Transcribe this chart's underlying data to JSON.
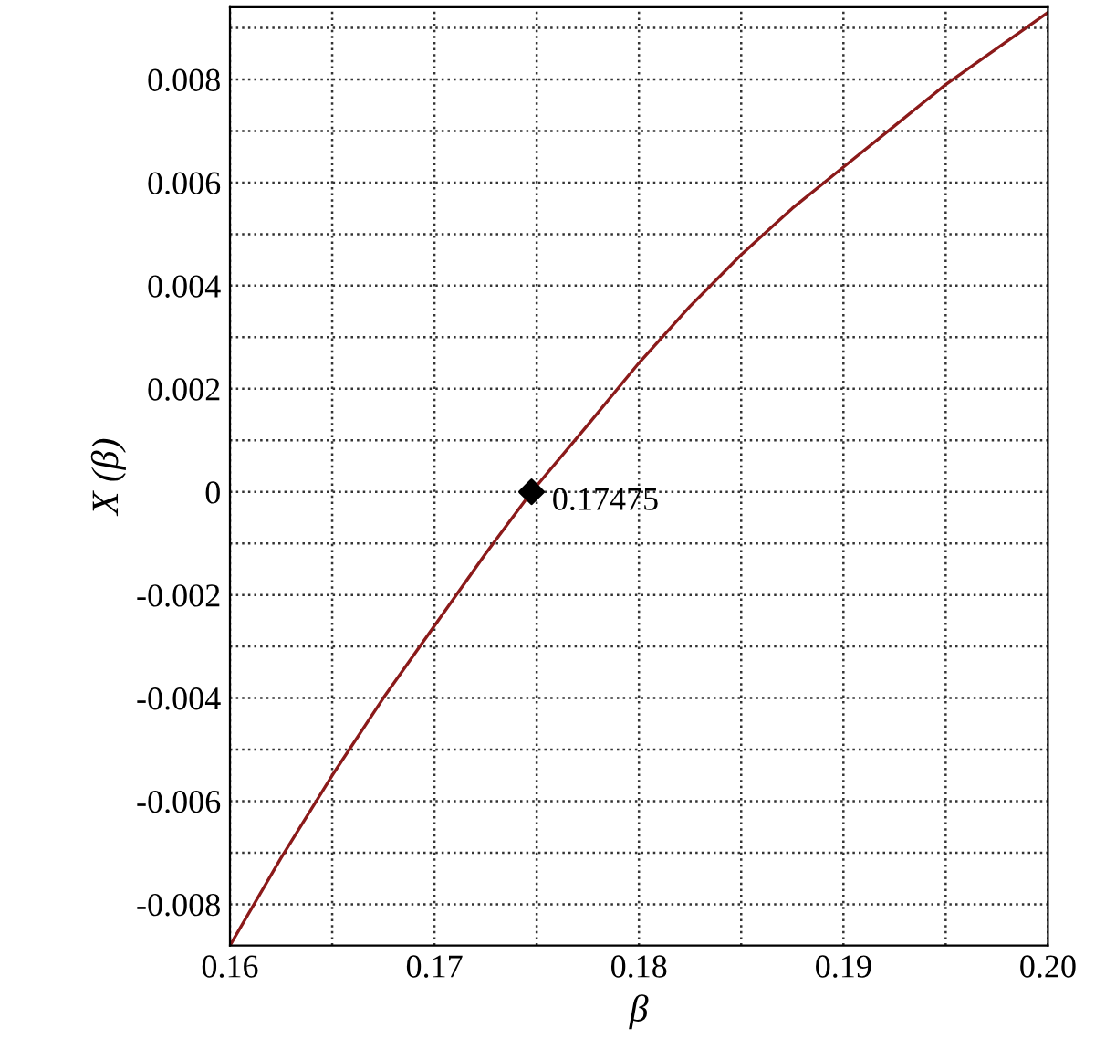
{
  "chart_data": {
    "type": "line",
    "xlabel": "β",
    "ylabel": "X (β)",
    "xlim": [
      0.16,
      0.2
    ],
    "ylim": [
      -0.0088,
      0.0094
    ],
    "xticks": [
      0.16,
      {
        "value": 0.165,
        "label": null
      },
      0.17,
      {
        "value": 0.175,
        "label": null
      },
      0.18,
      {
        "value": 0.185,
        "label": null
      },
      0.19,
      {
        "value": 0.195,
        "label": null
      },
      {
        "value": 0.2,
        "label": "0.20"
      }
    ],
    "yticks": [
      -0.008,
      {
        "value": -0.007,
        "label": null
      },
      -0.006,
      {
        "value": -0.005,
        "label": null
      },
      -0.004,
      {
        "value": -0.003,
        "label": null
      },
      -0.002,
      {
        "value": -0.001,
        "label": null
      },
      0,
      {
        "value": 0.001,
        "label": null
      },
      0.002,
      {
        "value": 0.003,
        "label": null
      },
      0.004,
      {
        "value": 0.005,
        "label": null
      },
      0.006,
      {
        "value": 0.007,
        "label": null
      },
      0.008,
      {
        "value": 0.009,
        "label": null
      }
    ],
    "grid": true,
    "line_style": "solid",
    "series": [
      {
        "color": "#8b1a1a",
        "marker": "none",
        "x": [
          0.16,
          0.1625,
          0.165,
          0.1675,
          0.17,
          0.1725,
          0.17475,
          0.1775,
          0.18,
          0.1825,
          0.185,
          0.1875,
          0.19,
          0.1925,
          0.195,
          0.1975,
          0.2
        ],
        "values": [
          -0.0088,
          -0.0071,
          -0.0055,
          -0.004,
          -0.0026,
          -0.0012,
          0,
          0.0013,
          0.0025,
          0.0036,
          0.0046,
          0.0055,
          0.0063,
          0.0071,
          0.0079,
          0.0086,
          0.0093
        ]
      },
      {
        "type": "scatter",
        "color": "#000000",
        "marker": "diamond",
        "x": [
          0.17475
        ],
        "values": [
          0
        ]
      }
    ],
    "annotations": [
      {
        "text": "0.17475",
        "x": 0.17475,
        "y": 0
      }
    ]
  }
}
